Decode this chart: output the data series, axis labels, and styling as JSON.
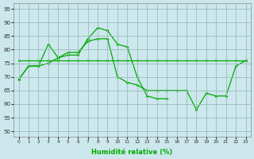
{
  "x": [
    0,
    1,
    2,
    3,
    4,
    5,
    6,
    7,
    8,
    9,
    10,
    11,
    12,
    13,
    14,
    15,
    16,
    17,
    18,
    19,
    20,
    21,
    22,
    23
  ],
  "line_upper": [
    69,
    74,
    74,
    82,
    77,
    78,
    78,
    84,
    88,
    87,
    82,
    81,
    70,
    63,
    62,
    62,
    null,
    null,
    null,
    null,
    null,
    null,
    null,
    null
  ],
  "line_flat": [
    76,
    76,
    76,
    76,
    76,
    76,
    76,
    76,
    76,
    76,
    76,
    76,
    76,
    76,
    76,
    76,
    76,
    76,
    76,
    76,
    76,
    76,
    76,
    76
  ],
  "line_lower": [
    69,
    74,
    74,
    75,
    77,
    79,
    79,
    83,
    84,
    84,
    70,
    68,
    67,
    65,
    65,
    65,
    65,
    65,
    58,
    64,
    63,
    63,
    74,
    76
  ],
  "bg_color": "#cce8ec",
  "line_color": "#00aa00",
  "grid_color": "#99bbbb",
  "ylabel_values": [
    50,
    55,
    60,
    65,
    70,
    75,
    80,
    85,
    90,
    95
  ],
  "xlabel": "Humidité relative (%)",
  "ylim": [
    48,
    97
  ],
  "xlim": [
    -0.5,
    23.5
  ]
}
